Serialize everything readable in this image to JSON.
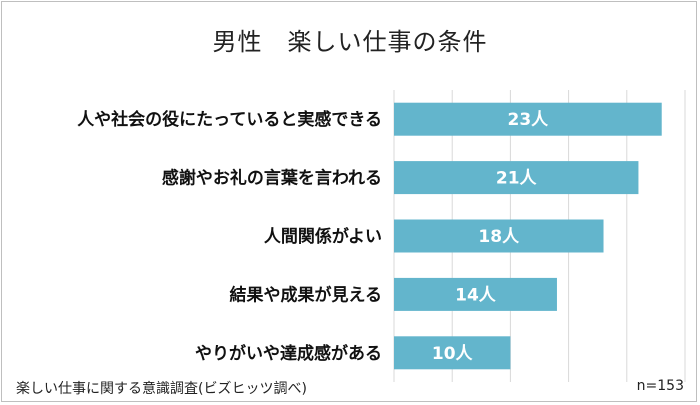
{
  "chart_data": {
    "type": "bar",
    "orientation": "horizontal",
    "title": "男性　楽しい仕事の条件",
    "categories": [
      "人や社会の役にたっていると実感できる",
      "感謝やお礼の言葉を言われる",
      "人間関係がよい",
      "結果や成果が見える",
      "やりがいや達成感がある"
    ],
    "values": [
      23,
      21,
      18,
      14,
      10
    ],
    "value_labels": [
      "23人",
      "21人",
      "18人",
      "14人",
      "10人"
    ],
    "xlim": [
      0,
      25
    ],
    "grid": true,
    "bar_color": "#63b5cc",
    "grid_color": "#d9d9d9"
  },
  "footer": {
    "source": "楽しい仕事に関する意識調査(ビズヒッツ調べ)",
    "n": "n=153"
  }
}
